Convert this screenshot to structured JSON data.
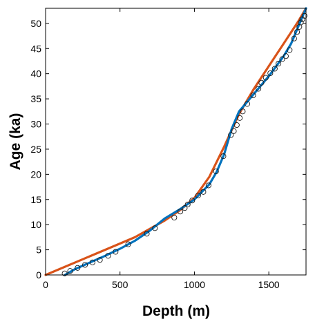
{
  "chart_data": {
    "type": "line",
    "xlabel": "Depth (m)",
    "ylabel": "Age (ka)",
    "xlim": [
      0,
      1750
    ],
    "ylim": [
      0,
      53
    ],
    "xticks": [
      0,
      500,
      1000,
      1500
    ],
    "yticks": [
      0,
      5,
      10,
      15,
      20,
      25,
      30,
      35,
      40,
      45,
      50
    ],
    "grid": false,
    "colors": {
      "blue": "#0072bd",
      "orange": "#d95319",
      "markers": "#1a1a1a"
    },
    "series": [
      {
        "style": "line",
        "color": "#d95319",
        "x": [
          0,
          200,
          400,
          600,
          800,
          900,
          1000,
          1100,
          1200,
          1300,
          1400,
          1500,
          1600,
          1700,
          1750
        ],
        "y": [
          0,
          2.5,
          5,
          7.5,
          10.8,
          12.8,
          15.3,
          19.5,
          25.5,
          32,
          37,
          41.5,
          46,
          50.5,
          53
        ]
      },
      {
        "style": "line",
        "color": "#0072bd",
        "x": [
          130,
          200,
          300,
          400,
          500,
          600,
          700,
          800,
          900,
          1000,
          1100,
          1150,
          1200,
          1250,
          1300,
          1400,
          1500,
          1600,
          1650,
          1700,
          1750
        ],
        "y": [
          0,
          1.2,
          2.5,
          3.8,
          5.2,
          6.8,
          8.8,
          11.2,
          13,
          15,
          18,
          20.5,
          24,
          29,
          32.5,
          36,
          39.5,
          43.5,
          46,
          49.5,
          53
        ]
      },
      {
        "style": "markers",
        "color": "#1a1a1a",
        "x": [
          128,
          165,
          215,
          265,
          315,
          365,
          420,
          470,
          555,
          680,
          735,
          865,
          905,
          935,
          955,
          985,
          1025,
          1060,
          1095,
          1145,
          1195,
          1245,
          1265,
          1285,
          1305,
          1325,
          1355,
          1395,
          1430,
          1450,
          1480,
          1510,
          1540,
          1565,
          1590,
          1615,
          1640,
          1670,
          1690,
          1705,
          1715,
          1725,
          1740
        ],
        "y": [
          0.3,
          0.8,
          1.4,
          2.0,
          2.5,
          3.0,
          3.8,
          4.6,
          6.1,
          8.2,
          9.3,
          11.4,
          12.6,
          13.3,
          14.0,
          14.8,
          15.8,
          16.5,
          17.8,
          20.6,
          23.6,
          27.8,
          28.6,
          29.8,
          31.2,
          32.5,
          34.0,
          35.7,
          37.0,
          38.2,
          39.2,
          40.1,
          41.0,
          42.0,
          42.9,
          43.5,
          44.7,
          47.0,
          48.3,
          49.3,
          50.2,
          50.8,
          51.5
        ]
      }
    ]
  }
}
